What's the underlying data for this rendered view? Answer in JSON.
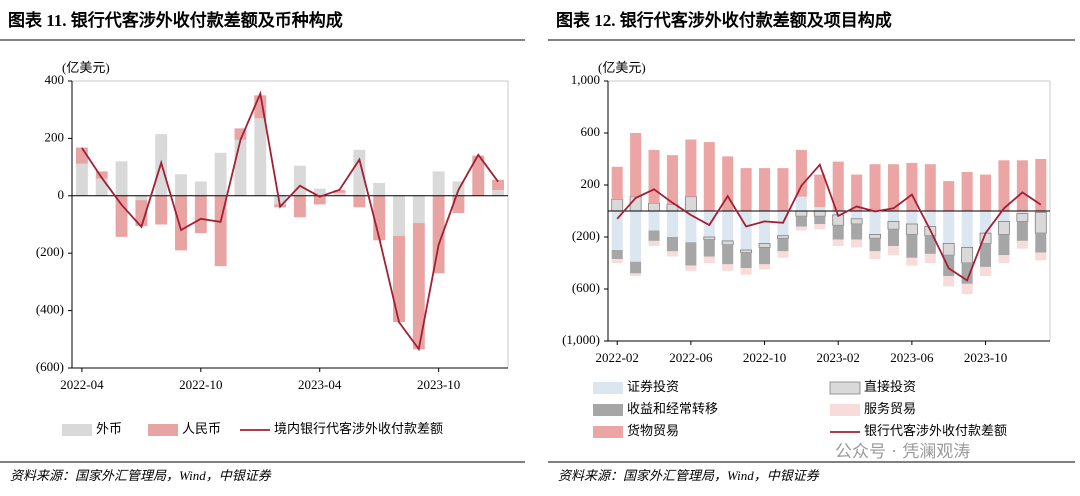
{
  "chart_data": [
    {
      "type": "bar",
      "stacked": true,
      "title": "图表 11. 银行代客涉外收付款差额及币种构成",
      "ylabel": "(亿美元)",
      "source": "资料来源：国家外汇管理局，Wind，中银证券",
      "categories": [
        "2022-04",
        null,
        null,
        null,
        null,
        null,
        "2022-10",
        null,
        null,
        null,
        null,
        null,
        "2023-04",
        null,
        null,
        null,
        null,
        null,
        "2023-10",
        null,
        null,
        null
      ],
      "ylim": [
        -600,
        400
      ],
      "yticks": [
        {
          "value": 400,
          "label": "400"
        },
        {
          "value": 200,
          "label": "200"
        },
        0,
        {
          "value": -200,
          "label": "(200)"
        },
        {
          "value": -400,
          "label": "(400)"
        },
        {
          "value": -600,
          "label": "(600)"
        }
      ],
      "negative_tick_color": "#c00000",
      "series": [
        {
          "name": "外币",
          "kind": "bar",
          "color": "#d9d9d9",
          "values": [
            112,
            60,
            120,
            -15,
            215,
            75,
            50,
            150,
            195,
            270,
            -30,
            105,
            25,
            10,
            160,
            45,
            -140,
            -95,
            85,
            50,
            0,
            20
          ]
        },
        {
          "name": "人民币",
          "kind": "bar",
          "color": "#e8a3a3",
          "values": [
            56,
            25,
            -143,
            -90,
            -100,
            -190,
            -130,
            -245,
            40,
            80,
            -10,
            -75,
            -30,
            10,
            -40,
            -155,
            -300,
            -440,
            -270,
            -60,
            140,
            35
          ]
        },
        {
          "name": "境内银行代客涉外收付款差额",
          "kind": "line",
          "color": "#a31f34",
          "values": [
            167,
            63,
            -31,
            -108,
            115,
            -119,
            -80,
            -91,
            195,
            356,
            -38,
            35,
            -3,
            21,
            126,
            -147,
            -440,
            -534,
            -171,
            21,
            143,
            49
          ]
        }
      ]
    },
    {
      "type": "bar",
      "stacked": true,
      "title": "图表 12. 银行代客涉外收付款差额及项目构成",
      "ylabel": "(亿美元)",
      "source": "资料来源：国家外汇管理局，Wind，中银证券",
      "categories": [
        "2022-02",
        null,
        null,
        null,
        "2022-06",
        null,
        null,
        null,
        "2022-10",
        null,
        null,
        null,
        "2023-02",
        null,
        null,
        null,
        "2023-06",
        null,
        null,
        null,
        "2023-10",
        null,
        null,
        null
      ],
      "ylim": [
        -1000,
        1000
      ],
      "yticks": [
        {
          "value": 1000,
          "label": "1,000"
        },
        600,
        200,
        {
          "value": -200,
          "label": "(200)"
        },
        {
          "value": -600,
          "label": "(600)"
        },
        {
          "value": -1000,
          "label": "(1,000)"
        }
      ],
      "negative_tick_color": "#c00000",
      "series": [
        {
          "name": "证券投资",
          "kind": "bar",
          "color": "#dce6f0",
          "values": [
            -300,
            -390,
            -150,
            -200,
            -240,
            -200,
            -230,
            -300,
            -250,
            -190,
            110,
            30,
            -30,
            -60,
            -180,
            -80,
            -100,
            -120,
            -250,
            -280,
            -170,
            -80,
            -20,
            -10
          ]
        },
        {
          "name": "直接投资",
          "kind": "bar",
          "color": "#d9d9d9",
          "stroke": "#7f7f7f",
          "values": [
            90,
            110,
            60,
            50,
            110,
            -20,
            -30,
            -20,
            -30,
            -20,
            -40,
            -40,
            -80,
            -40,
            -30,
            -60,
            -80,
            -70,
            -90,
            -120,
            -80,
            -100,
            -60,
            -160
          ]
        },
        {
          "name": "收益和经常转移",
          "kind": "bar",
          "color": "#a6a6a6",
          "values": [
            -70,
            -90,
            -80,
            -110,
            -180,
            -130,
            -150,
            -120,
            -130,
            -100,
            -80,
            -60,
            -110,
            -120,
            -100,
            -130,
            -180,
            -140,
            -160,
            -160,
            -180,
            -160,
            -150,
            -150
          ]
        },
        {
          "name": "服务贸易",
          "kind": "bar",
          "color": "#f8dcdc",
          "values": [
            -30,
            -20,
            -40,
            -40,
            -40,
            -50,
            -50,
            -50,
            -40,
            -50,
            -30,
            -40,
            -50,
            -60,
            -60,
            -70,
            -60,
            -70,
            -80,
            -80,
            -70,
            -60,
            -60,
            -60
          ]
        },
        {
          "name": "货物贸易",
          "kind": "bar",
          "color": "#eba5a5",
          "values": [
            250,
            490,
            410,
            380,
            440,
            530,
            420,
            330,
            330,
            330,
            360,
            250,
            380,
            280,
            360,
            360,
            370,
            360,
            230,
            300,
            280,
            390,
            390,
            400
          ]
        },
        {
          "name": "银行代客涉外收付款差额",
          "kind": "line",
          "color": "#a31f34",
          "values": [
            -60,
            100,
            167,
            63,
            -31,
            -108,
            115,
            -119,
            -80,
            -91,
            195,
            356,
            -38,
            35,
            -3,
            21,
            126,
            -147,
            -440,
            -534,
            -171,
            21,
            143,
            49
          ]
        }
      ]
    }
  ],
  "watermark": "公众号 · 凭澜观涛"
}
